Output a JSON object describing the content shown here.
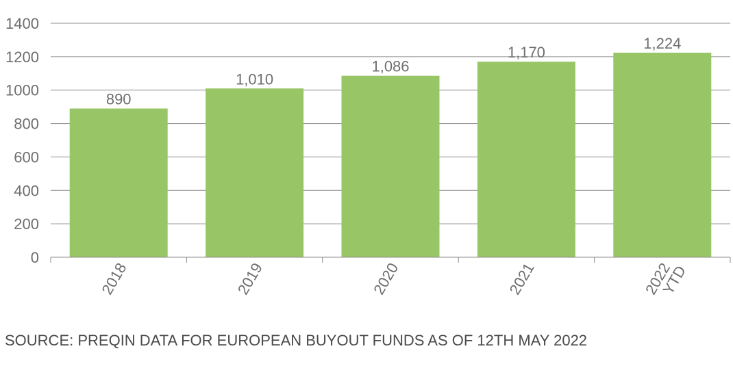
{
  "chart_data": {
    "type": "bar",
    "categories": [
      [
        "2018"
      ],
      [
        "2019"
      ],
      [
        "2020"
      ],
      [
        "2021"
      ],
      [
        "2022",
        "YTD"
      ]
    ],
    "values": [
      890,
      1010,
      1086,
      1170,
      1224
    ],
    "value_labels": [
      "890",
      "1,010",
      "1,086",
      "1,170",
      "1,224"
    ],
    "ylim": [
      0,
      1400
    ],
    "yticks": [
      0,
      200,
      400,
      600,
      800,
      1000,
      1200,
      1400
    ],
    "grid": true,
    "bar_color": "#98c666",
    "grid_color": "#8c8c8c",
    "title": "",
    "xlabel": "",
    "ylabel": ""
  },
  "source_note": "SOURCE: PREQIN DATA FOR EUROPEAN BUYOUT FUNDS AS OF 12TH MAY 2022"
}
